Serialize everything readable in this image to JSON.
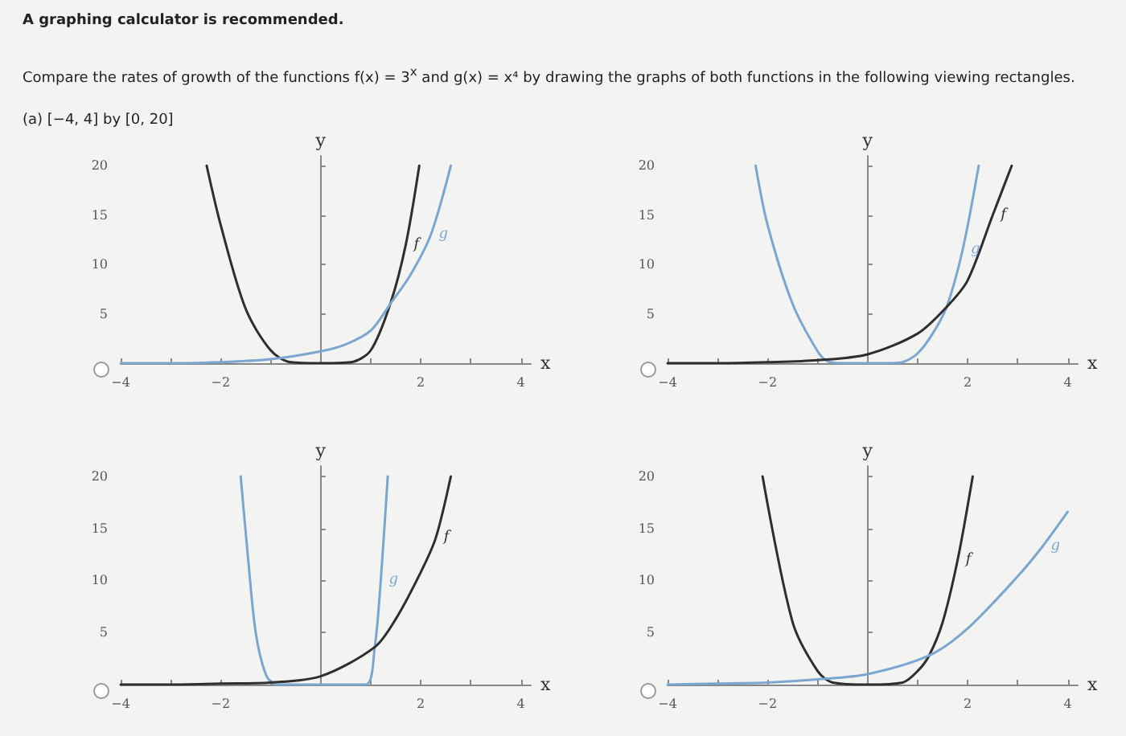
{
  "chart_data": [
    {
      "type": "line",
      "title": "A graphing calculator is recommended.",
      "subtitle": "Compare the rates of growth of the functions f(x) = 3$^{x}$ and g(x) = x⁴ by drawing the graphs of both functions in the following viewing rectangles.",
      "annotations": [
        "(a)  [−4, 4] by [0, 20]"
      ],
      "xlabel": "x",
      "ylabel": "y",
      "xlim": [
        -4,
        4.2
      ],
      "ylim": [
        0,
        21
      ],
      "xticks": [
        -4,
        {
          "value": -3,
          "label": null
        },
        -2,
        {
          "value": -1,
          "label": null
        },
        {
          "value": 1,
          "label": null
        },
        2,
        {
          "value": 3,
          "label": null
        },
        4
      ],
      "yticks": [
        5,
        10,
        15,
        20
      ],
      "series": [
        {
          "name": "f",
          "color": "#2e2e2e",
          "x": [
            -2.28,
            -2,
            -1.5,
            -1,
            -0.6,
            0,
            0.6,
            1,
            1.39,
            1.7,
            1.97
          ],
          "values": [
            20,
            14,
            5.5,
            1.3,
            0.1,
            0,
            0.1,
            1.3,
            6,
            12,
            20
          ]
        },
        {
          "name": "g",
          "color": "#7aa6cf",
          "x": [
            -4,
            -3,
            -2,
            -1,
            0,
            0.5,
            1,
            1.39,
            1.8,
            2.2,
            2.6
          ],
          "values": [
            0,
            0,
            0.1,
            0.4,
            1.2,
            1.9,
            3.3,
            6,
            9,
            13,
            20
          ]
        }
      ]
    },
    {
      "type": "line",
      "xlabel": "x",
      "ylabel": "y",
      "xlim": [
        -4,
        4.2
      ],
      "ylim": [
        0,
        21
      ],
      "xticks": [
        -4,
        {
          "value": -3,
          "label": null
        },
        -2,
        {
          "value": -1,
          "label": null
        },
        {
          "value": 1,
          "label": null
        },
        2,
        {
          "value": 3,
          "label": null
        },
        4
      ],
      "yticks": [
        5,
        10,
        15,
        20
      ],
      "series": [
        {
          "name": "g",
          "color": "#7aa6cf",
          "x": [
            -2.24,
            -2,
            -1.5,
            -1,
            -0.8,
            -0.5,
            0,
            0.5,
            0.7,
            1,
            1.3,
            1.58,
            1.9,
            2.22
          ],
          "values": [
            20,
            14,
            6,
            1.2,
            0.2,
            0,
            0,
            0,
            0.1,
            1,
            3,
            5.7,
            11.5,
            20
          ]
        },
        {
          "name": "f",
          "color": "#2e2e2e",
          "x": [
            -4,
            -3,
            -2,
            -1,
            0,
            1,
            1.58,
            2,
            2.5,
            2.88
          ],
          "values": [
            0,
            0,
            0.1,
            0.3,
            0.9,
            3,
            5.7,
            8.4,
            15,
            20
          ]
        }
      ]
    },
    {
      "type": "line",
      "xlabel": "x",
      "ylabel": "y",
      "xlim": [
        -4,
        4.2
      ],
      "ylim": [
        0,
        21
      ],
      "xticks": [
        -4,
        {
          "value": -3,
          "label": null
        },
        -2,
        {
          "value": -1,
          "label": null
        },
        {
          "value": 1,
          "label": null
        },
        2,
        {
          "value": 3,
          "label": null
        },
        4
      ],
      "yticks": [
        5,
        10,
        15,
        20
      ],
      "series": [
        {
          "name": "g",
          "color": "#7aa6cf",
          "x": [
            -1.6,
            -1.45,
            -1.3,
            -1.1,
            -0.9,
            0,
            0.9,
            1.08,
            1.2,
            1.34
          ],
          "values": [
            20,
            12,
            5,
            1,
            0,
            0,
            0,
            3.6,
            10,
            20
          ]
        },
        {
          "name": "f",
          "color": "#2e2e2e",
          "x": [
            -4,
            -3,
            -2,
            -1,
            0,
            1.08,
            1.5,
            2,
            2.3,
            2.6
          ],
          "values": [
            0,
            0,
            0.1,
            0.2,
            0.8,
            3.6,
            6.3,
            10.8,
            14.1,
            20
          ]
        }
      ]
    },
    {
      "type": "line",
      "xlabel": "x",
      "ylabel": "y",
      "xlim": [
        -4,
        4.2
      ],
      "ylim": [
        0,
        21
      ],
      "xticks": [
        -4,
        {
          "value": -3,
          "label": null
        },
        -2,
        {
          "value": -1,
          "label": null
        },
        {
          "value": 1,
          "label": null
        },
        2,
        {
          "value": 3,
          "label": null
        },
        4
      ],
      "yticks": [
        5,
        10,
        15,
        20
      ],
      "series": [
        {
          "name": "f",
          "color": "#2e2e2e",
          "x": [
            -2.1,
            -1.5,
            -1,
            -0.7,
            0,
            0.7,
            1,
            1.23,
            1.5,
            1.8,
            2.1
          ],
          "values": [
            20,
            6,
            1.3,
            0.2,
            0,
            0.2,
            1.3,
            2.8,
            6,
            12,
            20
          ]
        },
        {
          "name": "g",
          "color": "#7aa6cf",
          "x": [
            -4,
            -3,
            -2,
            -1,
            0,
            1.23,
            2,
            3,
            3.5,
            4
          ],
          "values": [
            0,
            0.1,
            0.2,
            0.5,
            1,
            2.8,
            5.4,
            10.4,
            13.3,
            16.6
          ]
        }
      ]
    }
  ]
}
